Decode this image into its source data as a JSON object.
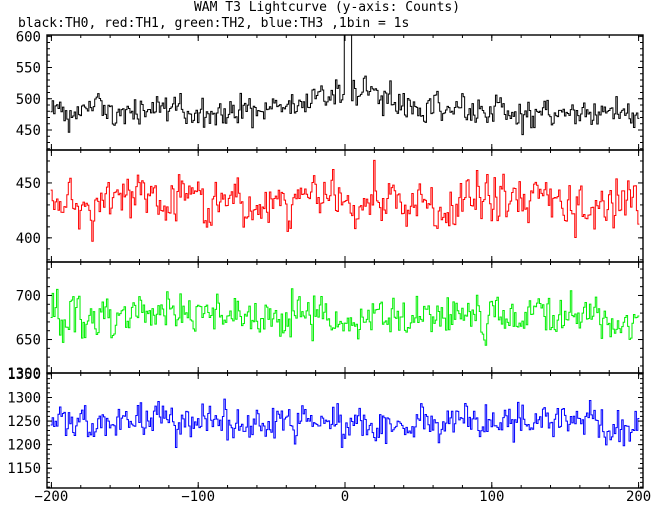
{
  "chart_data": {
    "type": "line",
    "title": "WAM T3 Lightcurve (y-axis: Counts)",
    "subtitle": "black:TH0, red:TH1, green:TH2, blue:TH3 ,1bin = 1s",
    "xlabel": "",
    "ylabel": "",
    "xlim": [
      -203,
      203
    ],
    "x_ticks": [
      -200,
      -100,
      0,
      100,
      200
    ],
    "x_tick_labels": [
      "−200",
      "−100",
      "0",
      "100",
      "200"
    ],
    "grid": false,
    "panels": [
      {
        "name": "TH0",
        "color": "#000000",
        "ylim": [
          418,
          602
        ],
        "yticks": [
          450,
          500,
          550,
          600
        ],
        "series_summary": {
          "x_start": -200,
          "x_end": 200,
          "bin": 1,
          "mean": 480,
          "spread": 22
        },
        "features": [
          {
            "x": [
              0,
              4
            ],
            "y": [
              600,
              600
            ],
            "note": "spike"
          }
        ],
        "sample_points": [
          {
            "x": -200,
            "y": 478
          },
          {
            "x": -150,
            "y": 485
          },
          {
            "x": -100,
            "y": 478
          },
          {
            "x": -50,
            "y": 482
          },
          {
            "x": 0,
            "y": 600
          },
          {
            "x": 2,
            "y": 600
          },
          {
            "x": 4,
            "y": 600
          },
          {
            "x": 50,
            "y": 481
          },
          {
            "x": 100,
            "y": 480
          },
          {
            "x": 150,
            "y": 483
          },
          {
            "x": 200,
            "y": 448
          }
        ]
      },
      {
        "name": "TH1",
        "color": "#ff0000",
        "ylim": [
          378,
          480
        ],
        "yticks": [
          400,
          450
        ],
        "series_summary": {
          "x_start": -200,
          "x_end": 200,
          "bin": 1,
          "mean": 432,
          "spread": 20
        },
        "sample_points": [
          {
            "x": -200,
            "y": 430
          },
          {
            "x": -150,
            "y": 440
          },
          {
            "x": -100,
            "y": 425
          },
          {
            "x": -50,
            "y": 432
          },
          {
            "x": 0,
            "y": 438
          },
          {
            "x": 50,
            "y": 430
          },
          {
            "x": 100,
            "y": 436
          },
          {
            "x": 150,
            "y": 428
          },
          {
            "x": 200,
            "y": 430
          }
        ]
      },
      {
        "name": "TH2",
        "color": "#00ee00",
        "ylim": [
          612,
          738
        ],
        "yticks": [
          650,
          700
        ],
        "series_summary": {
          "x_start": -200,
          "x_end": 200,
          "bin": 1,
          "mean": 675,
          "spread": 22
        },
        "sample_points": [
          {
            "x": -200,
            "y": 680
          },
          {
            "x": -150,
            "y": 685
          },
          {
            "x": -100,
            "y": 672
          },
          {
            "x": -50,
            "y": 678
          },
          {
            "x": 0,
            "y": 670
          },
          {
            "x": 50,
            "y": 680
          },
          {
            "x": 100,
            "y": 676
          },
          {
            "x": 150,
            "y": 674
          },
          {
            "x": 200,
            "y": 665
          }
        ]
      },
      {
        "name": "TH3",
        "color": "#0000ff",
        "ylim": [
          1108,
          1352
        ],
        "yticks": [
          1150,
          1200,
          1250,
          1300,
          1350
        ],
        "series_summary": {
          "x_start": -200,
          "x_end": 200,
          "bin": 1,
          "mean": 1250,
          "spread": 38
        },
        "sample_points": [
          {
            "x": -200,
            "y": 1240
          },
          {
            "x": -150,
            "y": 1265
          },
          {
            "x": -100,
            "y": 1250
          },
          {
            "x": -50,
            "y": 1252
          },
          {
            "x": 0,
            "y": 1245
          },
          {
            "x": 50,
            "y": 1250
          },
          {
            "x": 100,
            "y": 1248
          },
          {
            "x": 150,
            "y": 1250
          },
          {
            "x": 200,
            "y": 1220
          }
        ]
      }
    ],
    "extra_tick_label": "1300"
  }
}
